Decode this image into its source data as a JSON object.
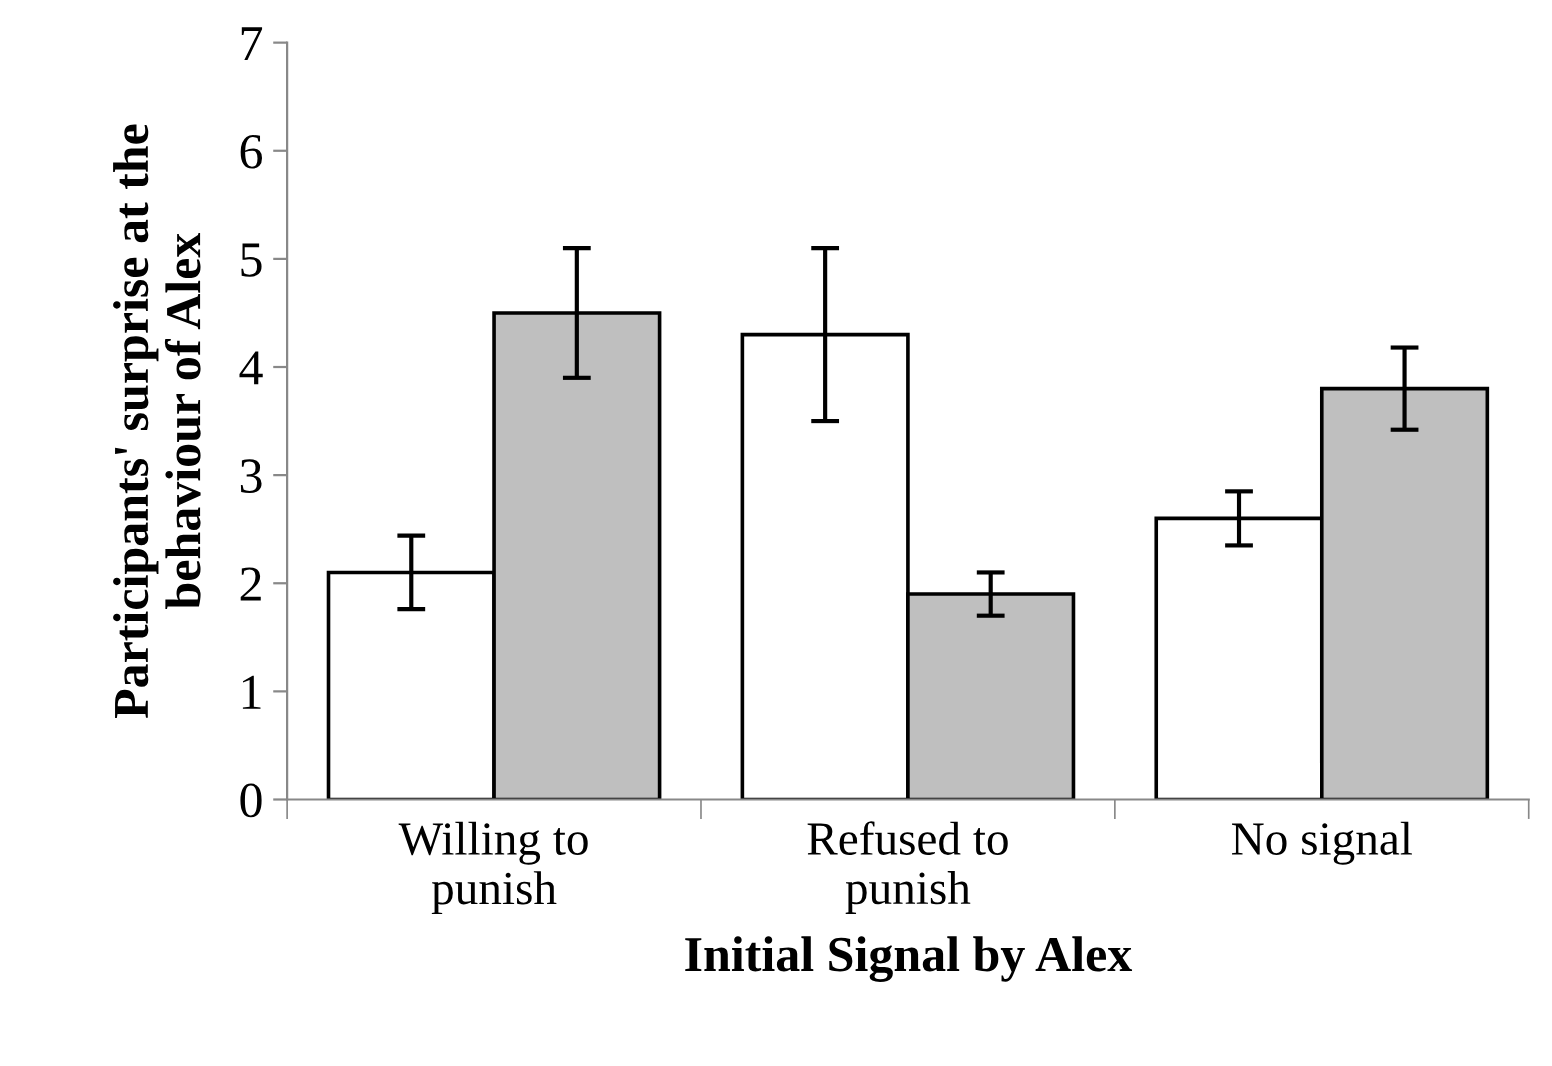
{
  "chart_data": {
    "type": "bar",
    "xlabel": "Initial Signal by Alex",
    "ylabel": "Participants' surprise at the\nbehaviour of Alex",
    "categories": [
      "Willing to\npunish",
      "Refused to\npunish",
      "No signal"
    ],
    "series": [
      {
        "color": "#ffffff",
        "values": [
          2.1,
          4.3,
          2.6
        ],
        "errors": [
          [
            1.76,
            2.44
          ],
          [
            3.5,
            5.1
          ],
          [
            2.35,
            2.85
          ]
        ]
      },
      {
        "color": "#bfbfbf",
        "values": [
          4.5,
          1.9,
          3.8
        ],
        "errors": [
          [
            3.9,
            5.1
          ],
          [
            1.7,
            2.1
          ],
          [
            3.42,
            4.18
          ]
        ]
      }
    ],
    "ylim": [
      0,
      7
    ],
    "yticks": [
      0,
      1,
      2,
      3,
      4,
      5,
      6,
      7
    ],
    "grid": false,
    "legend": false
  }
}
